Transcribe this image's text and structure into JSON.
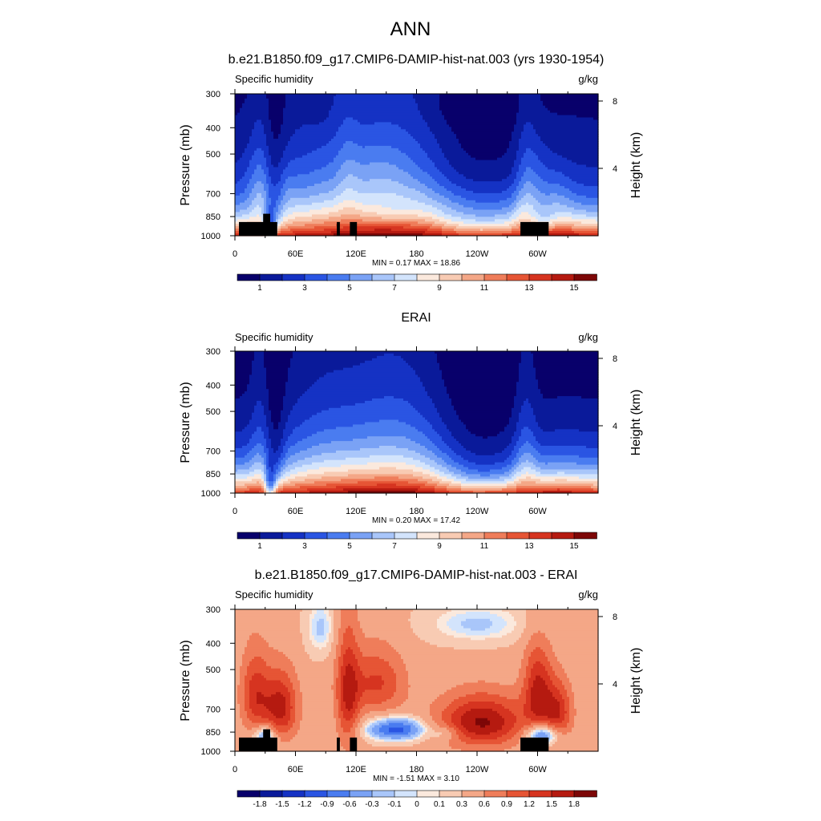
{
  "figure": {
    "title": "ANN"
  },
  "colors": {
    "seq_palette": [
      "#08006b",
      "#0a1a9a",
      "#1532c4",
      "#2a55e3",
      "#4a7cf0",
      "#7aa2f5",
      "#a9c6fa",
      "#d3e4fc",
      "#fbe9dd",
      "#f8cbb3",
      "#f4a787",
      "#ef7d5a",
      "#e65535",
      "#d63420",
      "#b51a10",
      "#7d0707"
    ],
    "div_palette": [
      "#08006b",
      "#0a1a9a",
      "#1532c4",
      "#2a55e3",
      "#4a7cf0",
      "#7aa2f5",
      "#a9c6fa",
      "#d3e4fc",
      "#fbe9dd",
      "#f8cbb3",
      "#f4a787",
      "#ef7d5a",
      "#e65535",
      "#d63420",
      "#b51a10",
      "#7d0707"
    ],
    "missing": "#000000"
  },
  "chart_data": [
    {
      "type": "heatmap",
      "panel_title": "b.e21.B1850.f09_g17.CMIP6-DAMIP-hist-nat.003 (yrs 1930-1954)",
      "left_string": "Specific humidity",
      "right_string": "g/kg",
      "ylabel": "Pressure (mb)",
      "ylabel_right": "Height (km)",
      "x_ticks": [
        "0",
        "60E",
        "120E",
        "180",
        "120W",
        "60W"
      ],
      "y_ticks": [
        "300",
        "400",
        "500",
        "700",
        "850",
        "1000"
      ],
      "y_right_ticks": [
        "8",
        "4"
      ],
      "min_max": "MIN =   0.17  MAX =  18.86",
      "min": 0.17,
      "max": 18.86,
      "colorbar_labels": [
        "1",
        "3",
        "5",
        "7",
        "9",
        "11",
        "13",
        "15"
      ],
      "palette": "seq",
      "field": "model",
      "xlim": [
        0,
        360
      ],
      "ylim": [
        1000,
        300
      ]
    },
    {
      "type": "heatmap",
      "panel_title": "ERAI",
      "left_string": "Specific humidity",
      "right_string": "g/kg",
      "ylabel": "Pressure (mb)",
      "ylabel_right": "Height (km)",
      "x_ticks": [
        "0",
        "60E",
        "120E",
        "180",
        "120W",
        "60W"
      ],
      "y_ticks": [
        "300",
        "400",
        "500",
        "700",
        "850",
        "1000"
      ],
      "y_right_ticks": [
        "8",
        "4"
      ],
      "min_max": "MIN =   0.20  MAX =  17.42",
      "min": 0.2,
      "max": 17.42,
      "colorbar_labels": [
        "1",
        "3",
        "5",
        "7",
        "9",
        "11",
        "13",
        "15"
      ],
      "palette": "seq",
      "field": "obs",
      "xlim": [
        0,
        360
      ],
      "ylim": [
        1000,
        300
      ]
    },
    {
      "type": "heatmap",
      "panel_title": "b.e21.B1850.f09_g17.CMIP6-DAMIP-hist-nat.003 - ERAI",
      "left_string": "Specific humidity",
      "right_string": "g/kg",
      "ylabel": "Pressure (mb)",
      "ylabel_right": "Height (km)",
      "x_ticks": [
        "0",
        "60E",
        "120E",
        "180",
        "120W",
        "60W"
      ],
      "y_ticks": [
        "300",
        "400",
        "500",
        "700",
        "850",
        "1000"
      ],
      "y_right_ticks": [
        "8",
        "4"
      ],
      "min_max": "MIN =  -1.51  MAX =   3.10",
      "min": -1.51,
      "max": 3.1,
      "colorbar_labels": [
        "-1.8",
        "-1.5",
        "-1.2",
        "-0.9",
        "-0.6",
        "-0.3",
        "-0.1",
        "0",
        "0.1",
        "0.3",
        "0.6",
        "0.9",
        "1.2",
        "1.5",
        "1.8"
      ],
      "palette": "div",
      "field": "diff",
      "xlim": [
        0,
        360
      ],
      "ylim": [
        1000,
        300
      ]
    }
  ]
}
